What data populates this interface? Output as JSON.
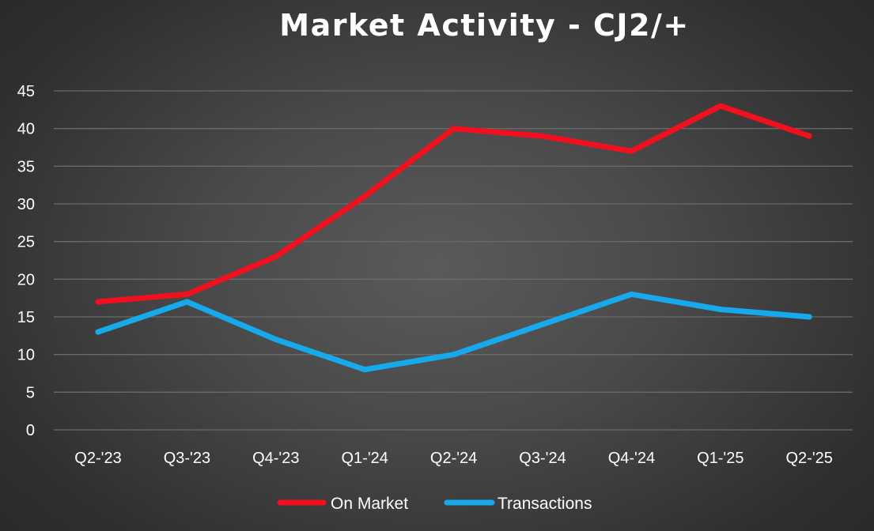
{
  "colors": {
    "on_market": "#f0101e",
    "transactions": "#16aaec",
    "grid": "#6a6a6a",
    "text": "#ffffff"
  },
  "chart_data": {
    "type": "line",
    "title": "Market Activity - CJ2/+",
    "xlabel": "",
    "ylabel": "",
    "categories": [
      "Q2-'23",
      "Q3-'23",
      "Q4-'23",
      "Q1-'24",
      "Q2-'24",
      "Q3-'24",
      "Q4-'24",
      "Q1-'25",
      "Q2-'25"
    ],
    "ylim": [
      0,
      45
    ],
    "yticks": [
      0,
      5,
      10,
      15,
      20,
      25,
      30,
      35,
      40,
      45
    ],
    "grid": true,
    "legend_position": "bottom",
    "series": [
      {
        "name": "On Market",
        "color": "#f0101e",
        "values": [
          17,
          18,
          23,
          31,
          40,
          39,
          37,
          43,
          39
        ]
      },
      {
        "name": "Transactions",
        "color": "#16aaec",
        "values": [
          13,
          17,
          12,
          8,
          10,
          14,
          18,
          16,
          15
        ]
      }
    ]
  }
}
